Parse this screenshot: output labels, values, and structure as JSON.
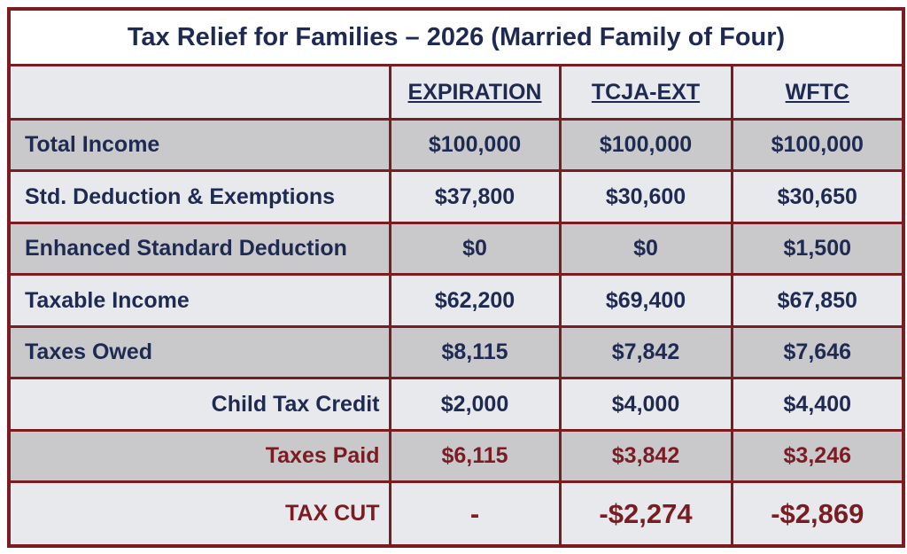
{
  "header": {
    "title": "Tax Relief for Families – 2026 (Married Family of Four)"
  },
  "table": {
    "columns": [
      "EXPIRATION",
      "TCJA-EXT",
      "WFTC"
    ],
    "rows": [
      {
        "label": "Total Income",
        "values": [
          "$100,000",
          "$100,000",
          "$100,000"
        ]
      },
      {
        "label": "Std. Deduction & Exemptions",
        "values": [
          "$37,800",
          "$30,600",
          "$30,650"
        ]
      },
      {
        "label": "Enhanced Standard Deduction",
        "values": [
          "$0",
          "$0",
          "$1,500"
        ]
      },
      {
        "label": "Taxable Income",
        "values": [
          "$62,200",
          "$69,400",
          "$67,850"
        ]
      },
      {
        "label": "Taxes Owed",
        "values": [
          "$8,115",
          "$7,842",
          "$7,646"
        ]
      },
      {
        "label": "Child Tax Credit",
        "values": [
          "$2,000",
          "$4,000",
          "$4,400"
        ]
      },
      {
        "label": "Taxes Paid",
        "values": [
          "$6,115",
          "$3,842",
          "$3,246"
        ]
      },
      {
        "label": "TAX CUT",
        "values": [
          "-",
          "-$2,274",
          "-$2,869"
        ]
      }
    ]
  }
}
